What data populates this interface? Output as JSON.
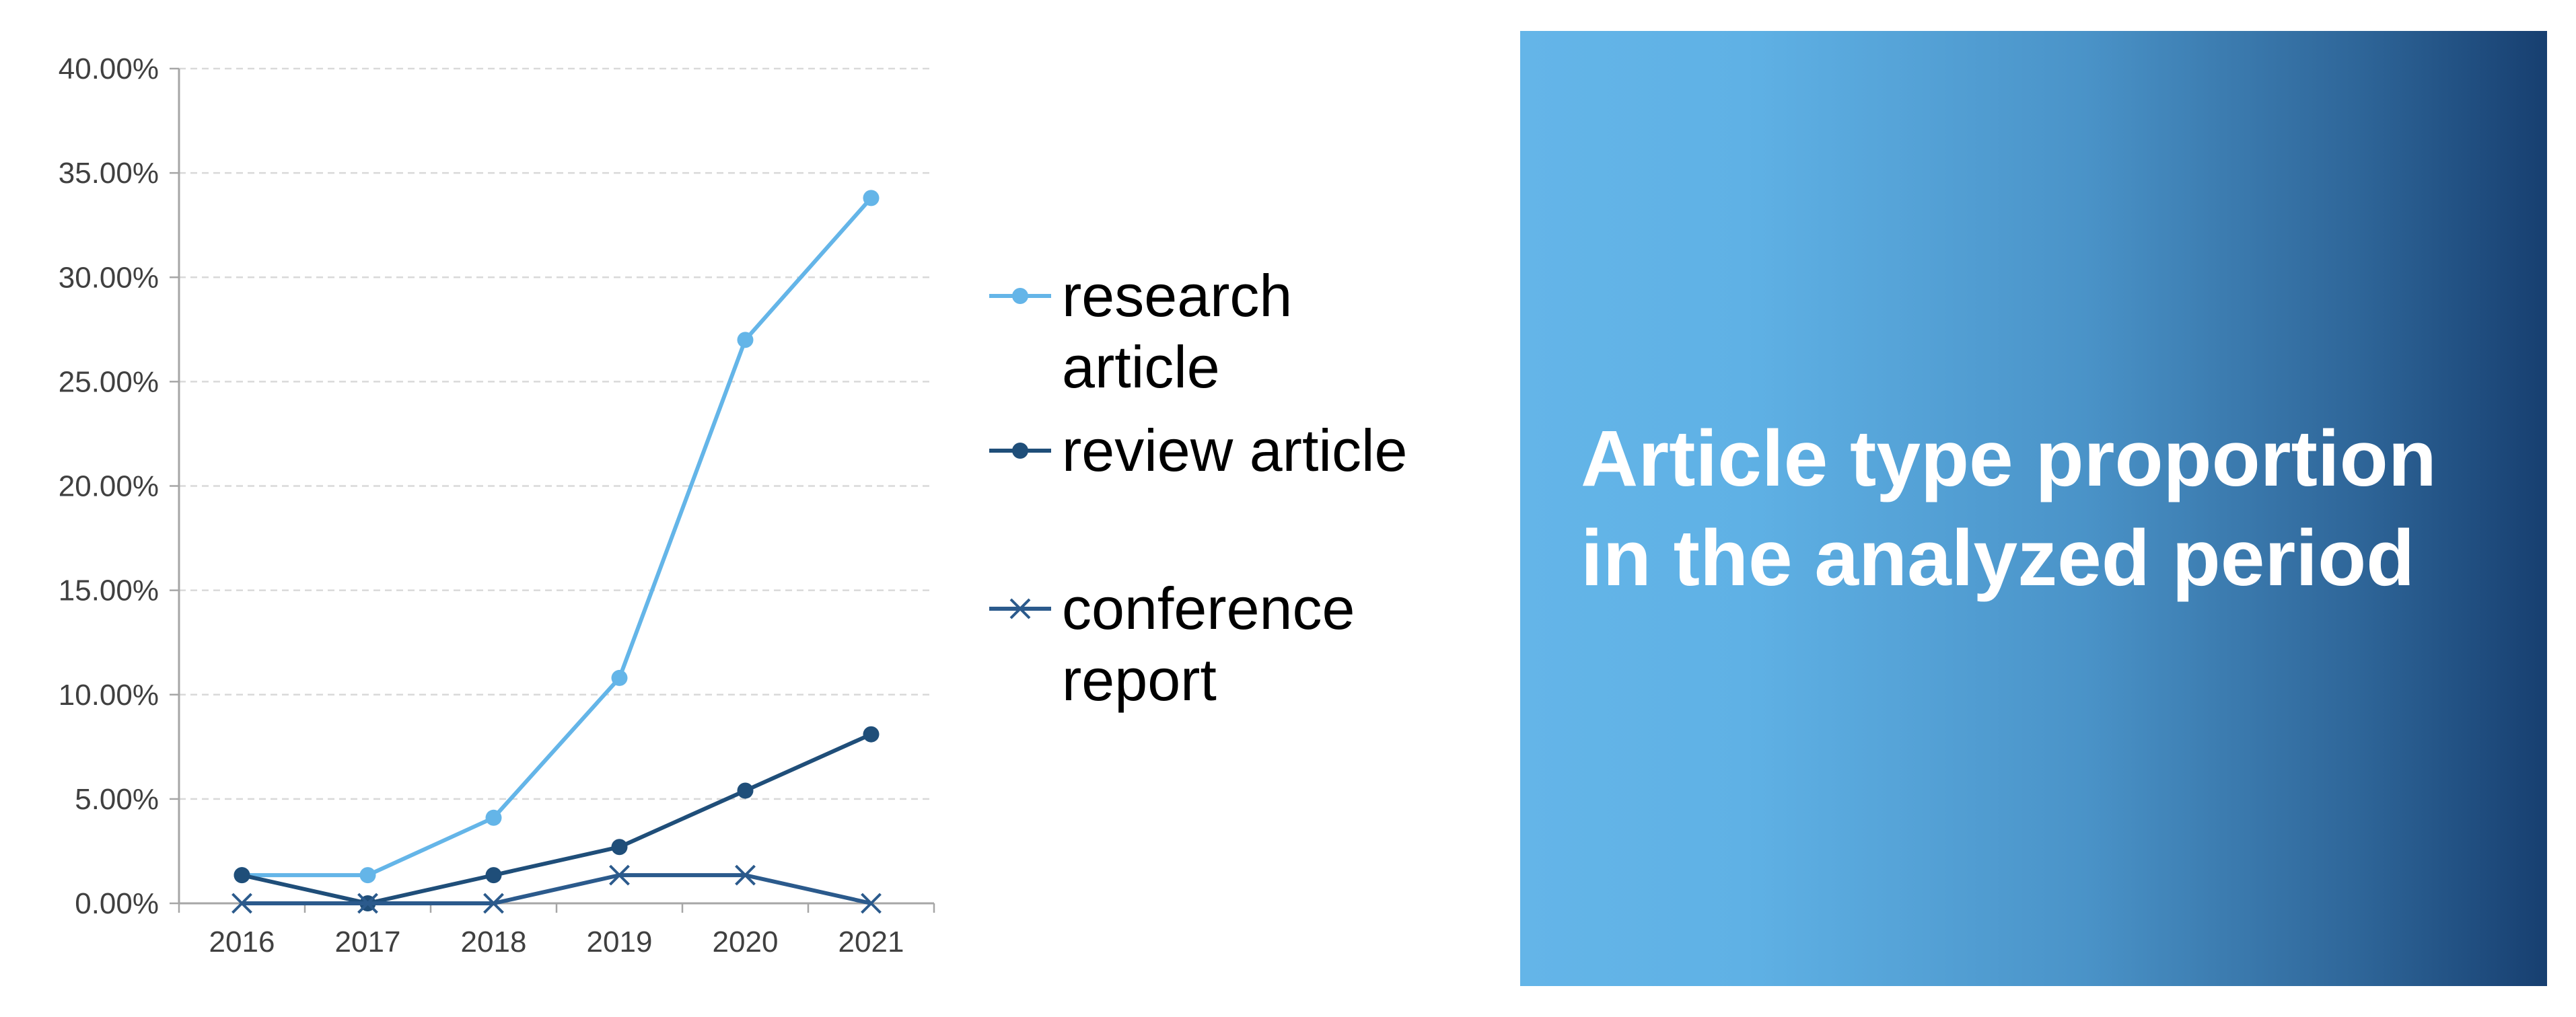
{
  "chart_data": {
    "type": "line",
    "title": "Article type proportion in the analyzed period",
    "xlabel": "",
    "ylabel": "",
    "categories": [
      "2016",
      "2017",
      "2018",
      "2019",
      "2020",
      "2021"
    ],
    "ylim": [
      0,
      40
    ],
    "yticks": [
      0,
      5,
      10,
      15,
      20,
      25,
      30,
      35,
      40
    ],
    "ytick_labels": [
      "0.00%",
      "5.00%",
      "10.00%",
      "15.00%",
      "20.00%",
      "25.00%",
      "30.00%",
      "35.00%",
      "40.00%"
    ],
    "grid": true,
    "legend": "right",
    "series": [
      {
        "name": "research article",
        "legend_lines": [
          "research",
          "article"
        ],
        "color": "#64b5e8",
        "marker": "circle",
        "values": [
          1.35,
          1.35,
          4.1,
          10.8,
          27.0,
          33.8
        ]
      },
      {
        "name": "review article",
        "legend_lines": [
          "review article"
        ],
        "color": "#1f4e79",
        "marker": "circle",
        "values": [
          1.35,
          0.0,
          1.35,
          2.7,
          5.4,
          8.1
        ]
      },
      {
        "name": "conference report",
        "legend_lines": [
          "conference",
          "report"
        ],
        "color": "#2b5a8c",
        "marker": "x",
        "values": [
          0.0,
          0.0,
          0.0,
          1.35,
          1.35,
          0.0
        ]
      }
    ]
  }
}
